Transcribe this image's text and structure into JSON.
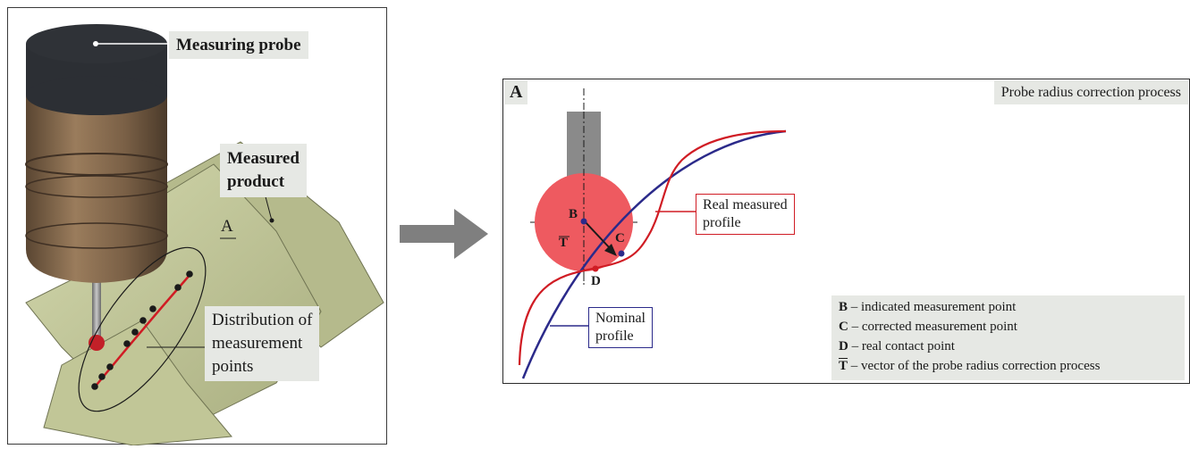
{
  "left": {
    "probe_label": "Measuring probe",
    "product_label_1": "Measured",
    "product_label_2": "product",
    "detail_marker": "A",
    "distribution_1": "Distribution of",
    "distribution_2": "measurement",
    "distribution_3": "points"
  },
  "right": {
    "panel_id": "A",
    "title": "Probe radius correction process",
    "point_b": "B",
    "point_c": "C",
    "point_d": "D",
    "vector_t": "T",
    "real_profile_1": "Real measured",
    "real_profile_2": "profile",
    "nominal_profile_1": "Nominal",
    "nominal_profile_2": "profile",
    "legend": [
      {
        "key": "B",
        "text": "– indicated measurement point"
      },
      {
        "key": "C",
        "text": "– corrected measurement point"
      },
      {
        "key": "D",
        "text": "– real contact point"
      },
      {
        "key": "T",
        "text": "– vector of the probe radius correction process"
      }
    ]
  },
  "colors": {
    "real_profile": "#d01c24",
    "nominal_profile": "#2b2a8a",
    "probe_ball": "#ee5a60",
    "stylus": "#8a8a8a",
    "surface": "#c4c99a"
  }
}
